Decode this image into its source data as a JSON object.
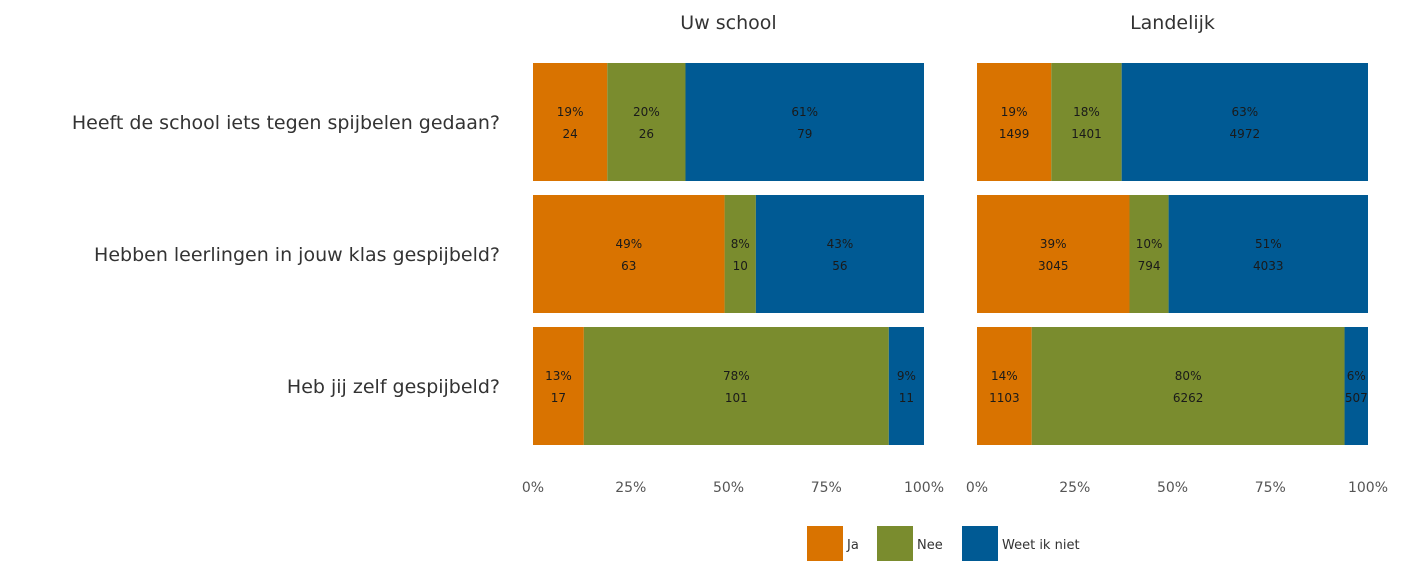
{
  "chart_data": {
    "type": "bar",
    "orientation": "horizontal",
    "stacked": true,
    "normalized": true,
    "questions": [
      "Heeft de school iets tegen spijbelen gedaan?",
      "Hebben leerlingen in jouw klas gespijbeld?",
      "Heb jij zelf gespijbeld?"
    ],
    "panels": [
      {
        "title": "Uw school",
        "rows": [
          {
            "segments": [
              {
                "series": "Ja",
                "percent": 19,
                "percent_label": "19%",
                "count": "24"
              },
              {
                "series": "Nee",
                "percent": 20,
                "percent_label": "20%",
                "count": "26"
              },
              {
                "series": "Weet ik niet",
                "percent": 61,
                "percent_label": "61%",
                "count": "79"
              }
            ]
          },
          {
            "segments": [
              {
                "series": "Ja",
                "percent": 49,
                "percent_label": "49%",
                "count": "63"
              },
              {
                "series": "Nee",
                "percent": 8,
                "percent_label": "8%",
                "count": "10"
              },
              {
                "series": "Weet ik niet",
                "percent": 43,
                "percent_label": "43%",
                "count": "56"
              }
            ]
          },
          {
            "segments": [
              {
                "series": "Ja",
                "percent": 13,
                "percent_label": "13%",
                "count": "17"
              },
              {
                "series": "Nee",
                "percent": 78,
                "percent_label": "78%",
                "count": "101"
              },
              {
                "series": "Weet ik niet",
                "percent": 9,
                "percent_label": "9%",
                "count": "11"
              }
            ]
          }
        ]
      },
      {
        "title": "Landelijk",
        "rows": [
          {
            "segments": [
              {
                "series": "Ja",
                "percent": 19,
                "percent_label": "19%",
                "count": "1499"
              },
              {
                "series": "Nee",
                "percent": 18,
                "percent_label": "18%",
                "count": "1401"
              },
              {
                "series": "Weet ik niet",
                "percent": 63,
                "percent_label": "63%",
                "count": "4972"
              }
            ]
          },
          {
            "segments": [
              {
                "series": "Ja",
                "percent": 39,
                "percent_label": "39%",
                "count": "3045"
              },
              {
                "series": "Nee",
                "percent": 10,
                "percent_label": "10%",
                "count": "794"
              },
              {
                "series": "Weet ik niet",
                "percent": 51,
                "percent_label": "51%",
                "count": "4033"
              }
            ]
          },
          {
            "segments": [
              {
                "series": "Ja",
                "percent": 14,
                "percent_label": "14%",
                "count": "1103"
              },
              {
                "series": "Nee",
                "percent": 80,
                "percent_label": "80%",
                "count": "6262"
              },
              {
                "series": "Weet ik niet",
                "percent": 6,
                "percent_label": "6%",
                "count": "507"
              }
            ]
          }
        ]
      }
    ],
    "x_ticks": [
      "0%",
      "25%",
      "50%",
      "75%",
      "100%"
    ],
    "xlim": [
      0,
      100
    ],
    "grid": false,
    "legend": {
      "placement": "bottom",
      "entries": [
        {
          "name": "Ja",
          "color": "#D97300"
        },
        {
          "name": "Nee",
          "color": "#7A8C2E"
        },
        {
          "name": "Weet ik niet",
          "color": "#005A94"
        }
      ]
    }
  }
}
